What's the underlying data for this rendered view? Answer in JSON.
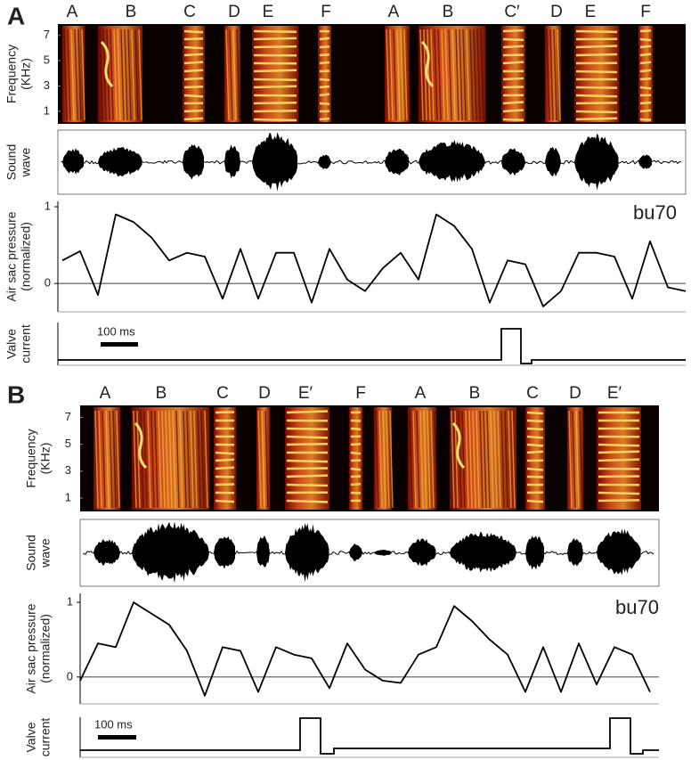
{
  "panels": [
    {
      "letter": "A",
      "syllables": [
        "A",
        "B",
        "C",
        "D",
        "E",
        "F",
        "A",
        "B",
        "C′",
        "D",
        "E",
        "F"
      ],
      "frequency": {
        "label_lines": [
          "Frequency",
          "(KHz)"
        ],
        "ylim": [
          0,
          7.9
        ],
        "yticks": [
          1,
          3,
          5,
          7
        ]
      },
      "sound": {
        "label_lines": [
          "Sound",
          "wave"
        ]
      },
      "pressure": {
        "label_lines": [
          "Air sac pressure",
          "(normalized)"
        ],
        "ylim": [
          -0.37,
          1.07
        ],
        "yticks": [
          0,
          1
        ],
        "annotation": "bu70",
        "values": [
          0.3,
          0.42,
          -0.15,
          0.9,
          0.8,
          0.6,
          0.3,
          0.4,
          0.35,
          -0.2,
          0.45,
          -0.2,
          0.4,
          0.4,
          -0.25,
          0.45,
          0.05,
          -0.1,
          0.2,
          0.4,
          0.05,
          0.9,
          0.75,
          0.45,
          -0.25,
          0.3,
          0.25,
          -0.3,
          -0.1,
          0.4,
          0.4,
          0.35,
          -0.2,
          0.55,
          -0.05,
          -0.1
        ]
      },
      "valve": {
        "label_lines": [
          "Valve",
          "current"
        ],
        "scale_bar": "100 ms"
      }
    },
    {
      "letter": "B",
      "syllables": [
        "A",
        "B",
        "C",
        "D",
        "E′",
        "F",
        "A",
        "B",
        "C",
        "D",
        "E′"
      ],
      "frequency": {
        "label_lines": [
          "Frequency",
          "(KHz)"
        ],
        "ylim": [
          0,
          7.9
        ],
        "yticks": [
          1,
          3,
          5,
          7
        ]
      },
      "sound": {
        "label_lines": [
          "Sound",
          "wave"
        ]
      },
      "pressure": {
        "label_lines": [
          "Air sac pressure",
          "(normalized)"
        ],
        "ylim": [
          -0.36,
          1.12
        ],
        "yticks": [
          0,
          1
        ],
        "annotation": "bu70",
        "values": [
          -0.05,
          0.45,
          0.4,
          1.0,
          0.85,
          0.7,
          0.35,
          -0.25,
          0.4,
          0.35,
          -0.2,
          0.4,
          0.3,
          0.25,
          -0.15,
          0.45,
          0.1,
          -0.05,
          -0.08,
          0.3,
          0.4,
          0.95,
          0.75,
          0.5,
          0.3,
          -0.2,
          0.4,
          -0.2,
          0.45,
          -0.1,
          0.4,
          0.3,
          -0.2
        ]
      },
      "valve": {
        "label_lines": [
          "Valve",
          "current"
        ],
        "scale_bar": "100 ms"
      }
    }
  ]
}
